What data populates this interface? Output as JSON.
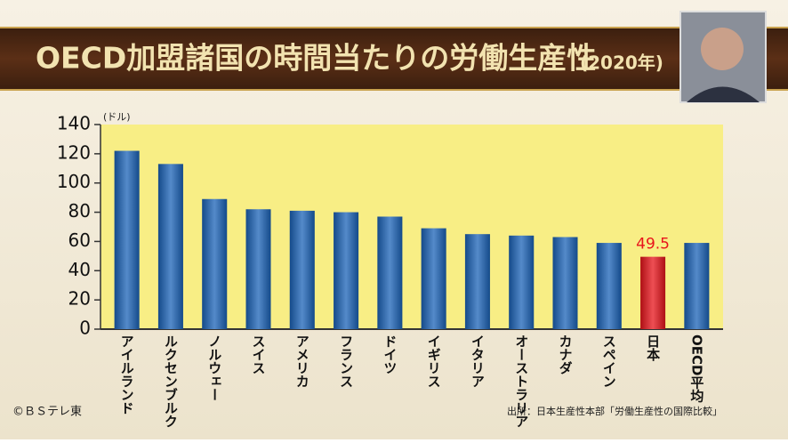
{
  "chart_data": {
    "type": "bar",
    "title": "OECD加盟諸国の時間当たりの労働生産性",
    "subtitle": "(2020年)",
    "y_label": "(ドル)",
    "categories": [
      "アイルランド",
      "ルクセンブルク",
      "ノルウェー",
      "スイス",
      "アメリカ",
      "フランス",
      "ドイツ",
      "イギリス",
      "イタリア",
      "オーストラリア",
      "カナダ",
      "スペイン",
      "日本",
      "OECD平均"
    ],
    "values": [
      122,
      113,
      89,
      82,
      81,
      80,
      77,
      69,
      65,
      64,
      63,
      59,
      49.5,
      59
    ],
    "value_labels": [
      null,
      null,
      null,
      null,
      null,
      null,
      null,
      null,
      null,
      null,
      null,
      null,
      "49.5",
      null
    ],
    "colors": [
      "#1b63b8",
      "#1b63b8",
      "#1b63b8",
      "#1b63b8",
      "#1b63b8",
      "#1b63b8",
      "#1b63b8",
      "#1b63b8",
      "#1b63b8",
      "#1b63b8",
      "#1b63b8",
      "#1b63b8",
      "#e8141b",
      "#1b63b8"
    ],
    "ylim": [
      0,
      140
    ],
    "yticks": [
      0,
      20,
      40,
      60,
      80,
      100,
      120,
      140
    ],
    "credit": "©ＢＳテレ東",
    "source": "出所：日本生産性本部「労働生産性の国際比較」"
  }
}
